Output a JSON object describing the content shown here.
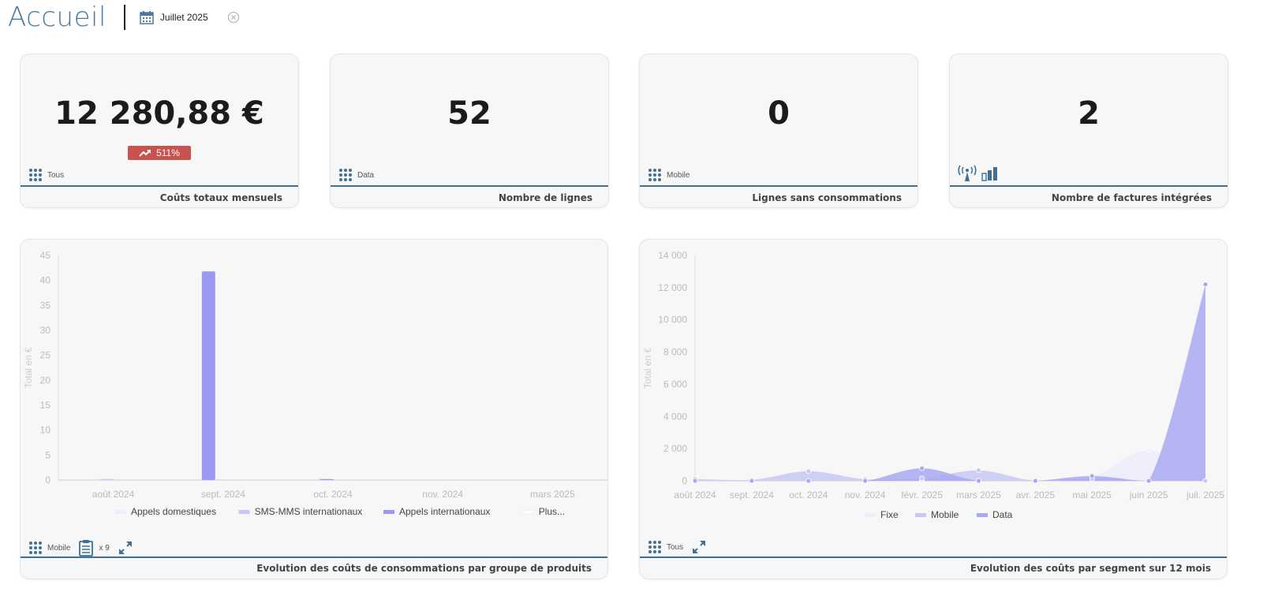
{
  "header": {
    "title": "Accueil",
    "date_filter": "Juillet 2025"
  },
  "kpis": [
    {
      "value": "12 280,88 €",
      "badge": "511%",
      "badge_color": "#c9524f",
      "tag": "Tous",
      "label": "Coûts totaux mensuels"
    },
    {
      "value": "52",
      "tag": "Data",
      "label": "Nombre de lignes"
    },
    {
      "value": "0",
      "tag": "Mobile",
      "label": "Lignes sans consommations"
    },
    {
      "value": "2",
      "label": "Nombre de factures intégrées"
    }
  ],
  "bar_panel": {
    "tag": "Mobile",
    "clipboard_count": "x 9",
    "label": "Evolution des coûts de consommations par groupe de produits",
    "chart_data": {
      "type": "bar",
      "ylabel": "Total en €",
      "ylim": [
        0,
        45
      ],
      "yticks": [
        0,
        5,
        10,
        15,
        20,
        25,
        30,
        35,
        40,
        45
      ],
      "categories": [
        "août 2024",
        "sept. 2024",
        "oct. 2024",
        "nov. 2024",
        "mars 2025"
      ],
      "series": [
        {
          "name": "Appels domestiques",
          "color": "#eeeefa",
          "values": [
            0,
            0,
            0,
            0,
            0
          ]
        },
        {
          "name": "SMS-MMS internationaux",
          "color": "#c8c8f8",
          "values": [
            0.1,
            0,
            0,
            0,
            0
          ]
        },
        {
          "name": "Appels internationaux",
          "color": "#9a9af4",
          "values": [
            0,
            41.8,
            0.1,
            0,
            0
          ]
        },
        {
          "name": "Plus...",
          "color": "#ffffff",
          "values": [
            0,
            0,
            0,
            0,
            0
          ]
        }
      ]
    }
  },
  "area_panel": {
    "tag": "Tous",
    "label": "Evolution des coûts par segment sur 12 mois",
    "chart_data": {
      "type": "area",
      "ylabel": "Total en €",
      "ylim": [
        0,
        14000
      ],
      "yticks": [
        0,
        2000,
        4000,
        6000,
        8000,
        10000,
        12000,
        14000
      ],
      "ytick_labels": [
        "0",
        "2 000",
        "4 000",
        "6 000",
        "8 000",
        "10 000",
        "12 000",
        "14 000"
      ],
      "categories": [
        "août 2024",
        "sept. 2024",
        "oct. 2024",
        "nov. 2024",
        "févr. 2025",
        "mars 2025",
        "avr. 2025",
        "mai 2025",
        "juin 2025",
        "juil. 2025"
      ],
      "series": [
        {
          "name": "Fixe",
          "color": "#ededfb",
          "values": [
            50,
            30,
            0,
            0,
            0,
            0,
            0,
            250,
            1900,
            0
          ]
        },
        {
          "name": "Mobile",
          "color": "#c8c8f6",
          "values": [
            120,
            60,
            600,
            100,
            150,
            650,
            0,
            120,
            0,
            0
          ]
        },
        {
          "name": "Data",
          "color": "#a9a9f2",
          "values": [
            0,
            0,
            0,
            0,
            780,
            0,
            0,
            300,
            0,
            12200
          ]
        }
      ]
    }
  }
}
